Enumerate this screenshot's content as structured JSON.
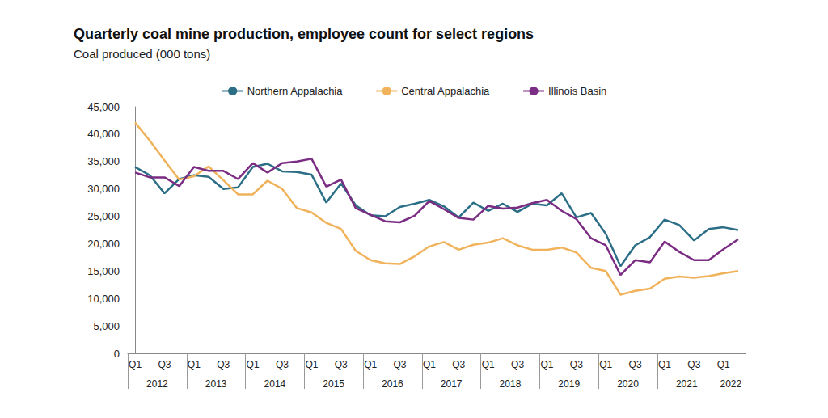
{
  "chart_data": {
    "type": "line",
    "title": "Quarterly coal mine production, employee count for select regions",
    "subtitle": "Coal produced (000 tons)",
    "categories": [
      "Q1",
      null,
      "Q3",
      null,
      "Q1",
      null,
      "Q3",
      null,
      "Q1",
      null,
      "Q3",
      null,
      "Q1",
      null,
      "Q3",
      null,
      "Q1",
      null,
      "Q3",
      null,
      "Q1",
      null,
      "Q3",
      null,
      "Q1",
      null,
      "Q3",
      null,
      "Q1",
      null,
      "Q3",
      null,
      "Q1",
      null,
      "Q3",
      null,
      "Q1",
      null,
      "Q3",
      null,
      "Q1",
      null
    ],
    "category_years": [
      "2012",
      "2012",
      "2012",
      "2012",
      "2013",
      "2013",
      "2013",
      "2013",
      "2014",
      "2014",
      "2014",
      "2014",
      "2015",
      "2015",
      "2015",
      "2015",
      "2016",
      "2016",
      "2016",
      "2016",
      "2017",
      "2017",
      "2017",
      "2017",
      "2018",
      "2018",
      "2018",
      "2018",
      "2019",
      "2019",
      "2019",
      "2019",
      "2020",
      "2020",
      "2020",
      "2020",
      "2021",
      "2021",
      "2021",
      "2021",
      "2022",
      "2022"
    ],
    "series": [
      {
        "name": "Northern Appalachia",
        "color": "#2b6e86",
        "marker": "none",
        "line_style": "solid",
        "values": [
          34000,
          32500,
          29200,
          31800,
          32500,
          32200,
          30000,
          30300,
          34000,
          34600,
          33200,
          33100,
          32600,
          27500,
          31000,
          27000,
          25200,
          25000,
          26700,
          27300,
          28000,
          26800,
          24800,
          27500,
          26000,
          27300,
          25800,
          27300,
          27000,
          29200,
          24800,
          25600,
          21800,
          15900,
          19700,
          21200,
          24400,
          23400,
          20600,
          22700,
          23000,
          22500
        ]
      },
      {
        "name": "Central Appalachia",
        "color": "#f0b25a",
        "marker": "none",
        "line_style": "solid",
        "values": [
          42100,
          38800,
          35200,
          31700,
          32300,
          34100,
          31600,
          29000,
          29000,
          31500,
          30000,
          26500,
          25700,
          23800,
          22700,
          18700,
          17000,
          16400,
          16300,
          17700,
          19500,
          20300,
          18900,
          19800,
          20200,
          21000,
          19700,
          18900,
          18900,
          19300,
          18400,
          15600,
          15000,
          10700,
          11400,
          11800,
          13600,
          14000,
          13800,
          14100,
          14600,
          15000
        ]
      },
      {
        "name": "Illinois Basin",
        "color": "#7b2c83",
        "marker": "none",
        "line_style": "solid",
        "values": [
          33000,
          32100,
          32100,
          30500,
          34000,
          33300,
          33300,
          31800,
          34700,
          33000,
          34700,
          35000,
          35500,
          30400,
          31700,
          26500,
          25300,
          24100,
          23900,
          25100,
          27800,
          26300,
          24700,
          24400,
          26900,
          26400,
          26600,
          27400,
          28000,
          26000,
          24500,
          21000,
          19700,
          14300,
          17000,
          16600,
          20400,
          18500,
          17000,
          17000,
          19000,
          20800
        ]
      }
    ],
    "ylim": [
      0,
      45000
    ],
    "yticks": [
      0,
      {
        "value": 5000,
        "label": "5,000"
      },
      {
        "value": 10000,
        "label": "10,000"
      },
      {
        "value": 15000,
        "label": "15,000"
      },
      {
        "value": 20000,
        "label": "20,000"
      },
      {
        "value": 25000,
        "label": "25,000"
      },
      {
        "value": 30000,
        "label": "30,000"
      },
      {
        "value": 35000,
        "label": "35,000"
      },
      {
        "value": 40000,
        "label": "40,000"
      },
      {
        "value": 45000,
        "label": "45,000"
      }
    ],
    "grid": false,
    "legend": "top"
  }
}
